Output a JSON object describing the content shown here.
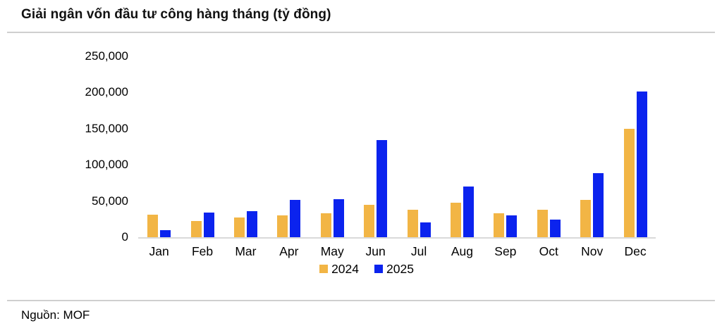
{
  "title": "Giải ngân vốn đầu tư công hàng tháng (tỷ đồng)",
  "footer": {
    "source": "Nguồn: MOF"
  },
  "colors": {
    "series_2024": "#F2B545",
    "series_2025": "#0B23EE",
    "axis_line": "#D9D9D9",
    "divider": "#CFCFCF",
    "text": "#000000",
    "background": "#FFFFFF"
  },
  "chart_data": {
    "type": "bar",
    "title": "Giải ngân vốn đầu tư công hàng tháng (tỷ đồng)",
    "categories": [
      "Jan",
      "Feb",
      "Mar",
      "Apr",
      "May",
      "Jun",
      "Jul",
      "Aug",
      "Sep",
      "Oct",
      "Nov",
      "Dec"
    ],
    "series": [
      {
        "name": "2024",
        "color": "#F2B545",
        "values": [
          31000,
          22000,
          27000,
          30000,
          33000,
          45000,
          38000,
          47500,
          33500,
          38000,
          51500,
          150000
        ]
      },
      {
        "name": "2025",
        "color": "#0B23EE",
        "values": [
          10000,
          34500,
          36000,
          51500,
          53000,
          134000,
          20000,
          70500,
          30500,
          24000,
          88500,
          201500
        ]
      }
    ],
    "xlabel": "",
    "ylabel": "",
    "ylim": [
      0,
      250000
    ],
    "yticks": [
      0,
      50000,
      100000,
      150000,
      200000,
      250000
    ],
    "ytick_labels": [
      "0",
      "50,000",
      "100,000",
      "150,000",
      "200,000",
      "250,000"
    ],
    "grid": false,
    "legend_position": "bottom",
    "source": "Nguồn: MOF"
  }
}
